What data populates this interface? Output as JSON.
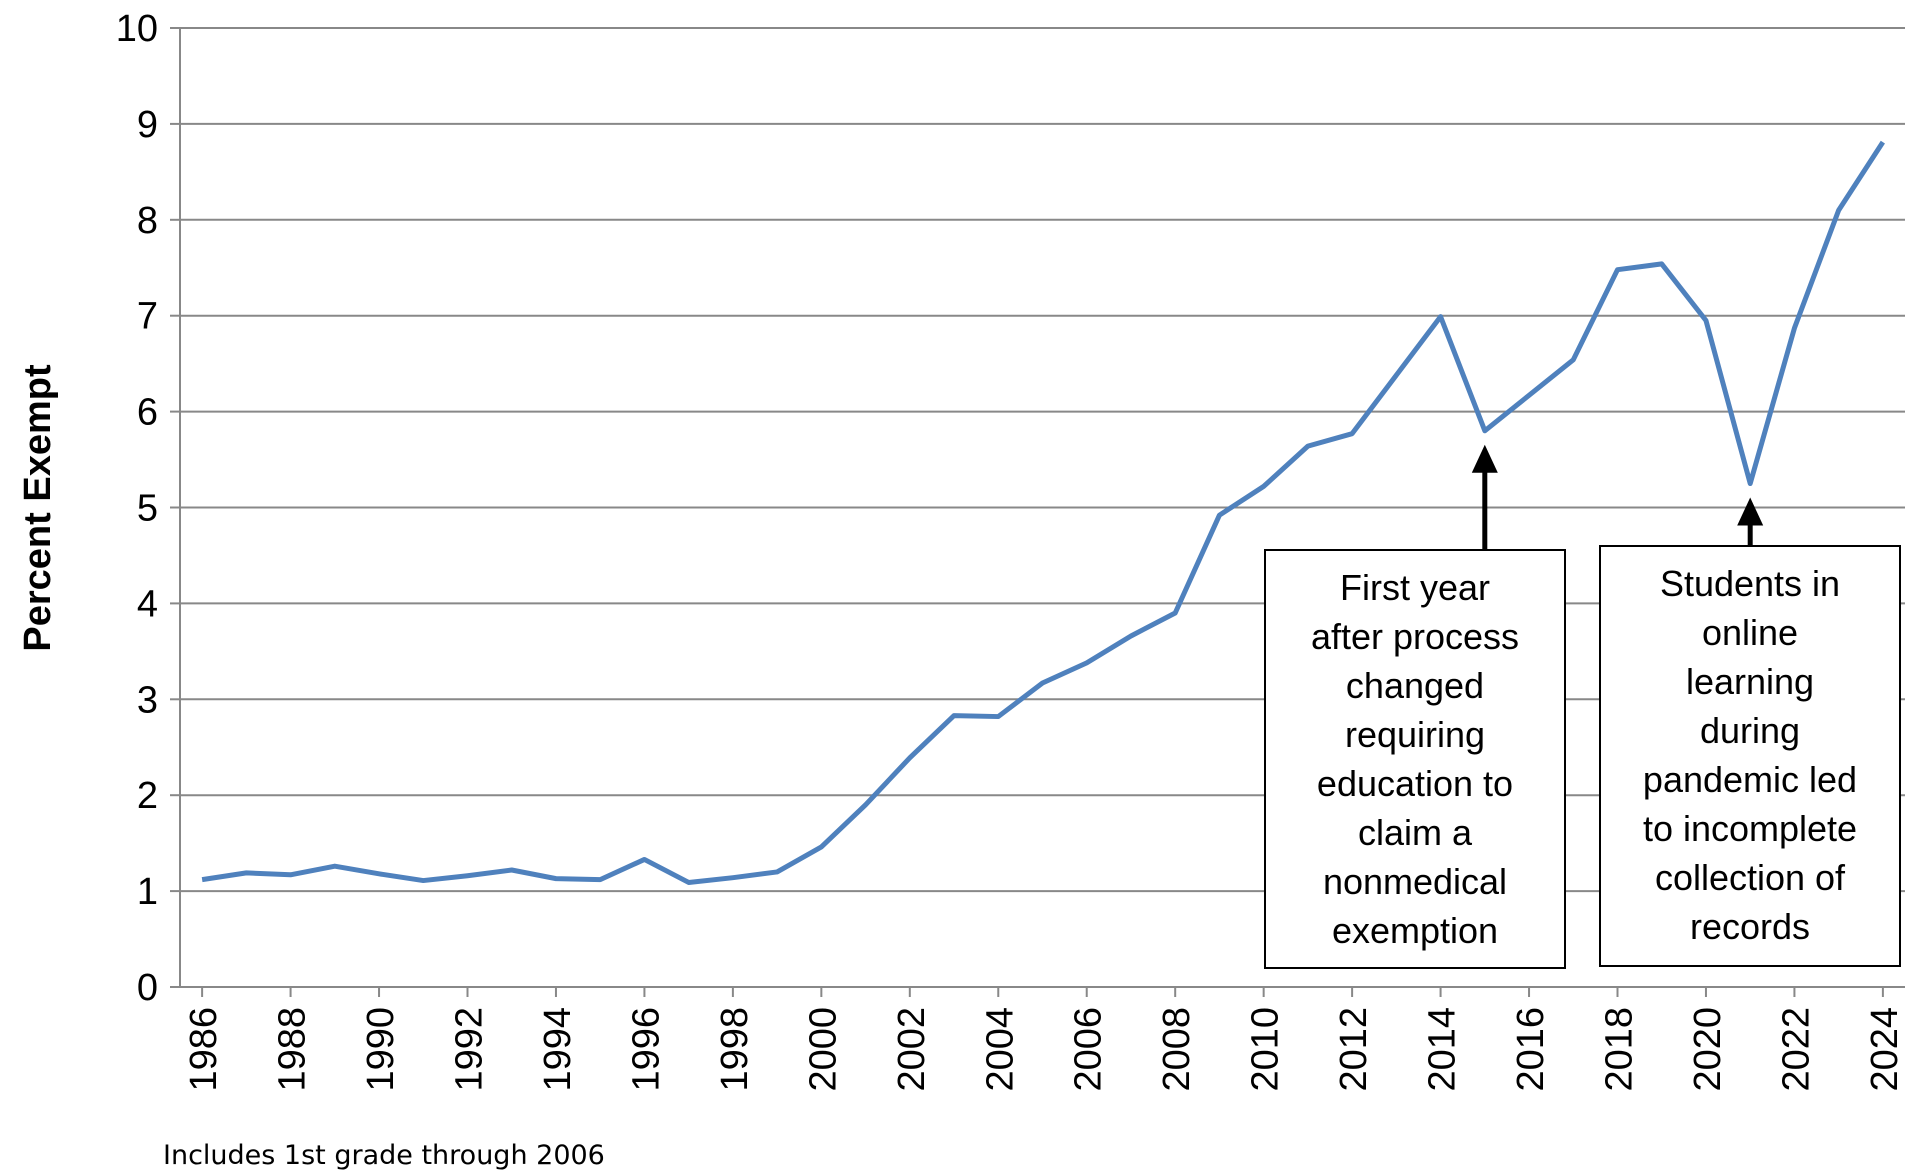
{
  "chart_data": {
    "type": "line",
    "y_label": "Percent Exempt",
    "note": "Includes 1st grade through 2006",
    "x": [
      1986,
      1987,
      1988,
      1989,
      1990,
      1991,
      1992,
      1993,
      1994,
      1995,
      1996,
      1997,
      1998,
      1999,
      2000,
      2001,
      2002,
      2003,
      2004,
      2005,
      2006,
      2007,
      2008,
      2009,
      2010,
      2011,
      2012,
      2013,
      2014,
      2015,
      2016,
      2017,
      2018,
      2019,
      2020,
      2021,
      2022,
      2023,
      2024
    ],
    "series": [
      {
        "name": "Percent Exempt",
        "color": "#4f81bd",
        "values": [
          1.12,
          1.19,
          1.17,
          1.26,
          1.18,
          1.11,
          1.16,
          1.22,
          1.13,
          1.12,
          1.33,
          1.09,
          1.14,
          1.2,
          1.46,
          1.9,
          2.39,
          2.83,
          2.82,
          3.17,
          3.38,
          3.66,
          3.9,
          4.92,
          5.22,
          5.64,
          5.77,
          6.38,
          6.99,
          5.8,
          6.17,
          6.54,
          7.48,
          7.54,
          6.95,
          5.25,
          6.87,
          8.1,
          8.81
        ]
      }
    ],
    "xlim": [
      1985.5,
      2024.5
    ],
    "xticks": [
      1986,
      1988,
      1990,
      1992,
      1994,
      1996,
      1998,
      2000,
      2002,
      2004,
      2006,
      2008,
      2010,
      2012,
      2014,
      2016,
      2018,
      2020,
      2022,
      2024
    ],
    "ylim": [
      0,
      10
    ],
    "yticks": [
      0,
      1,
      2,
      3,
      4,
      5,
      6,
      7,
      8,
      9,
      10
    ],
    "grid": true,
    "annotations": [
      {
        "x": 2015,
        "y": 5.8,
        "lines": [
          "First year",
          "after process",
          "changed",
          "requiring",
          "education to",
          "claim a",
          "nonmedical",
          "exemption"
        ]
      },
      {
        "x": 2021,
        "y": 5.25,
        "lines": [
          "Students in",
          "online",
          "learning",
          "during",
          "pandemic led",
          "to incomplete",
          "collection of",
          "records"
        ]
      }
    ]
  }
}
